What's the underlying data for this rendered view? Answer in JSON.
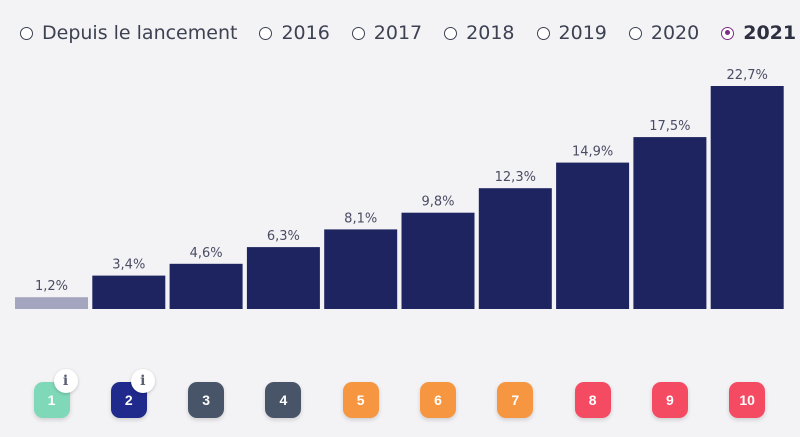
{
  "period_tabs": [
    {
      "label": "Depuis le lancement",
      "selected": false
    },
    {
      "label": "2016",
      "selected": false
    },
    {
      "label": "2017",
      "selected": false
    },
    {
      "label": "2018",
      "selected": false
    },
    {
      "label": "2019",
      "selected": false
    },
    {
      "label": "2020",
      "selected": false
    },
    {
      "label": "2021",
      "selected": true
    }
  ],
  "chart_data": {
    "type": "bar",
    "categories": [
      "1",
      "2",
      "3",
      "4",
      "5",
      "6",
      "7",
      "8",
      "9",
      "10"
    ],
    "values": [
      1.2,
      3.4,
      4.6,
      6.3,
      8.1,
      9.8,
      12.3,
      14.9,
      17.5,
      22.7
    ],
    "data_labels": [
      "1,2%",
      "3,4%",
      "4,6%",
      "6,3%",
      "8,1%",
      "9,8%",
      "12,3%",
      "14,9%",
      "17,5%",
      "22,7%"
    ],
    "ylim": [
      0,
      22.7
    ],
    "grid": false,
    "bar_colors": [
      "#a4a5bf",
      "#1e2460",
      "#1e2460",
      "#1e2460",
      "#1e2460",
      "#1e2460",
      "#1e2460",
      "#1e2460",
      "#1e2460",
      "#1e2460"
    ]
  },
  "decile_badges": [
    {
      "label": "1",
      "color": "#7fd9b9",
      "info": true
    },
    {
      "label": "2",
      "color": "#1f2a8c",
      "info": true
    },
    {
      "label": "3",
      "color": "#485568",
      "info": false
    },
    {
      "label": "4",
      "color": "#485568",
      "info": false
    },
    {
      "label": "5",
      "color": "#f79640",
      "info": false
    },
    {
      "label": "6",
      "color": "#f79640",
      "info": false
    },
    {
      "label": "7",
      "color": "#f79640",
      "info": false
    },
    {
      "label": "8",
      "color": "#f44b62",
      "info": false
    },
    {
      "label": "9",
      "color": "#f44b62",
      "info": false
    },
    {
      "label": "10",
      "color": "#f44b62",
      "info": false
    }
  ],
  "info_icon_glyph": "i"
}
